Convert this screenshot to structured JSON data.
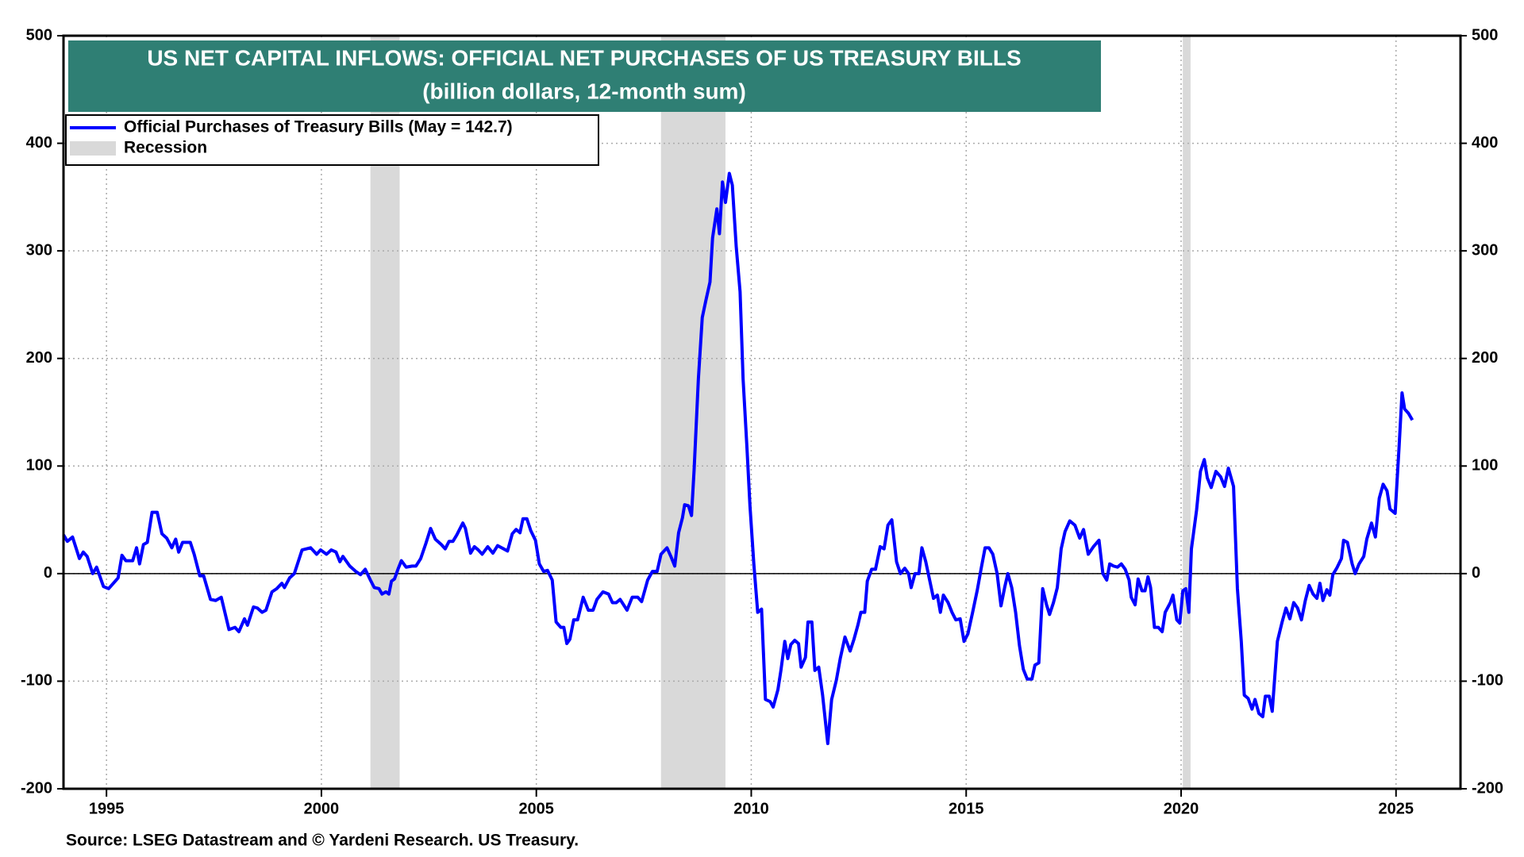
{
  "chart_data": {
    "type": "line",
    "title": "US NET CAPITAL INFLOWS: OFFICIAL NET PURCHASES OF US TREASURY BILLS",
    "subtitle": "(billion dollars, 12-month sum)",
    "source": "Source: LSEG Datastream and © Yardeni Research. US Treasury.",
    "recession_label": "Recession",
    "recession_color": "#d9d9d9",
    "recessions": [
      [
        2001.14,
        2001.82
      ],
      [
        2007.9,
        2009.4
      ],
      [
        2020.04,
        2020.22
      ]
    ],
    "xlim": [
      1994,
      2026.5
    ],
    "xticks": [
      1995,
      2000,
      2005,
      2010,
      2015,
      2020,
      2025
    ],
    "ylim": [
      -200,
      500
    ],
    "yticks": [
      -200,
      -100,
      0,
      100,
      200,
      300,
      400,
      500
    ],
    "y2lim": [
      -200,
      500
    ],
    "y2ticks": [
      -200,
      -100,
      0,
      100,
      200,
      300,
      400,
      500
    ],
    "grid": true,
    "legend": "upper left",
    "x": [
      1994.0,
      1994.09,
      1994.21,
      1994.37,
      1994.46,
      1994.55,
      1994.68,
      1994.77,
      1994.93,
      1995.05,
      1995.16,
      1995.27,
      1995.36,
      1995.45,
      1995.61,
      1995.7,
      1995.77,
      1995.86,
      1995.95,
      1996.06,
      1996.18,
      1996.29,
      1996.4,
      1996.52,
      1996.61,
      1996.68,
      1996.77,
      1996.95,
      1997.04,
      1997.17,
      1997.26,
      1997.42,
      1997.54,
      1997.67,
      1997.85,
      1997.99,
      1998.08,
      1998.21,
      1998.28,
      1998.42,
      1998.51,
      1998.62,
      1998.71,
      1998.85,
      1998.96,
      1999.08,
      1999.14,
      1999.26,
      1999.37,
      1999.55,
      1999.75,
      1999.89,
      1999.98,
      2000.12,
      2000.23,
      2000.34,
      2000.43,
      2000.5,
      2000.66,
      2000.8,
      2000.91,
      2001.02,
      2001.14,
      2001.23,
      2001.34,
      2001.41,
      2001.5,
      2001.57,
      2001.63,
      2001.7,
      2001.79,
      2001.86,
      2001.97,
      2002.11,
      2002.2,
      2002.31,
      2002.43,
      2002.54,
      2002.65,
      2002.79,
      2002.88,
      2002.97,
      2003.06,
      2003.15,
      2003.29,
      2003.35,
      2003.47,
      2003.56,
      2003.65,
      2003.74,
      2003.87,
      2003.99,
      2004.1,
      2004.24,
      2004.33,
      2004.44,
      2004.53,
      2004.62,
      2004.69,
      2004.78,
      2004.87,
      2004.98,
      2005.07,
      2005.17,
      2005.26,
      2005.37,
      2005.46,
      2005.57,
      2005.64,
      2005.71,
      2005.78,
      2005.87,
      2005.96,
      2006.09,
      2006.21,
      2006.32,
      2006.41,
      2006.55,
      2006.68,
      2006.77,
      2006.86,
      2006.95,
      2007.11,
      2007.23,
      2007.36,
      2007.45,
      2007.59,
      2007.7,
      2007.81,
      2007.9,
      2008.04,
      2008.13,
      2008.22,
      2008.31,
      2008.4,
      2008.45,
      2008.54,
      2008.61,
      2008.67,
      2008.77,
      2008.86,
      2008.95,
      2009.04,
      2009.1,
      2009.2,
      2009.26,
      2009.33,
      2009.4,
      2009.49,
      2009.56,
      2009.65,
      2009.74,
      2009.81,
      2009.9,
      2009.97,
      2010.06,
      2010.15,
      2010.24,
      2010.33,
      2010.44,
      2010.51,
      2010.62,
      2010.69,
      2010.78,
      2010.85,
      2010.92,
      2011.01,
      2011.1,
      2011.16,
      2011.26,
      2011.32,
      2011.41,
      2011.48,
      2011.57,
      2011.66,
      2011.78,
      2011.87,
      2011.98,
      2012.07,
      2012.18,
      2012.3,
      2012.39,
      2012.48,
      2012.55,
      2012.64,
      2012.7,
      2012.8,
      2012.89,
      2013.0,
      2013.09,
      2013.18,
      2013.27,
      2013.38,
      2013.47,
      2013.57,
      2013.66,
      2013.72,
      2013.81,
      2013.9,
      2013.97,
      2014.06,
      2014.15,
      2014.24,
      2014.33,
      2014.4,
      2014.47,
      2014.58,
      2014.67,
      2014.76,
      2014.86,
      2014.95,
      2015.04,
      2015.15,
      2015.26,
      2015.35,
      2015.44,
      2015.53,
      2015.62,
      2015.72,
      2015.81,
      2015.9,
      2015.97,
      2016.06,
      2016.15,
      2016.24,
      2016.33,
      2016.42,
      2016.53,
      2016.6,
      2016.69,
      2016.78,
      2016.87,
      2016.94,
      2017.03,
      2017.12,
      2017.21,
      2017.3,
      2017.41,
      2017.53,
      2017.64,
      2017.73,
      2017.84,
      2017.96,
      2018.09,
      2018.18,
      2018.27,
      2018.34,
      2018.43,
      2018.52,
      2018.61,
      2018.7,
      2018.79,
      2018.84,
      2018.93,
      2019.0,
      2019.09,
      2019.16,
      2019.23,
      2019.29,
      2019.38,
      2019.47,
      2019.56,
      2019.63,
      2019.75,
      2019.81,
      2019.9,
      2019.97,
      2020.04,
      2020.11,
      2020.18,
      2020.24,
      2020.36,
      2020.45,
      2020.54,
      2020.61,
      2020.7,
      2020.81,
      2020.92,
      2021.01,
      2021.1,
      2021.22,
      2021.31,
      2021.4,
      2021.47,
      2021.56,
      2021.65,
      2021.72,
      2021.81,
      2021.9,
      2021.96,
      2022.05,
      2022.12,
      2022.24,
      2022.35,
      2022.44,
      2022.53,
      2022.62,
      2022.71,
      2022.8,
      2022.89,
      2022.98,
      2023.07,
      2023.16,
      2023.23,
      2023.3,
      2023.39,
      2023.46,
      2023.53,
      2023.62,
      2023.73,
      2023.78,
      2023.87,
      2023.98,
      2024.05,
      2024.14,
      2024.25,
      2024.32,
      2024.43,
      2024.52,
      2024.61,
      2024.7,
      2024.79,
      2024.86,
      2024.98,
      2025.07,
      2025.14,
      2025.2,
      2025.29,
      2025.38
    ],
    "series": [
      {
        "name": "Official Purchases of Treasury Bills (May = 142.7)",
        "color": "#0000ff",
        "values": [
          36,
          30,
          34,
          14,
          20,
          16,
          0,
          6,
          -12,
          -14,
          -9,
          -4,
          17,
          12,
          12,
          24,
          9,
          27,
          29,
          57,
          57,
          37,
          33,
          24,
          32,
          20,
          29,
          29,
          18,
          -2,
          -2,
          -24,
          -25,
          -22,
          -52,
          -50,
          -54,
          -42,
          -48,
          -31,
          -32,
          -36,
          -34,
          -17,
          -14,
          -9,
          -13,
          -4,
          0,
          22,
          24,
          18,
          22,
          18,
          22,
          20,
          11,
          16,
          7,
          2,
          -1,
          4,
          -6,
          -13,
          -14,
          -19,
          -17,
          -19,
          -7,
          -5,
          5,
          12,
          6,
          7,
          7,
          14,
          28,
          42,
          32,
          27,
          23,
          30,
          30,
          36,
          47,
          42,
          19,
          25,
          22,
          18,
          25,
          19,
          26,
          23,
          21,
          37,
          41,
          38,
          51,
          51,
          40,
          31,
          9,
          2,
          3,
          -6,
          -45,
          -50,
          -50,
          -65,
          -61,
          -43,
          -43,
          -22,
          -34,
          -34,
          -24,
          -17,
          -19,
          -27,
          -27,
          -24,
          -34,
          -22,
          -22,
          -26,
          -6,
          2,
          2,
          18,
          24,
          16,
          7,
          38,
          52,
          64,
          63,
          54,
          96,
          181,
          238,
          255,
          271,
          312,
          339,
          316,
          364,
          345,
          372,
          361,
          304,
          262,
          181,
          117,
          63,
          9,
          -36,
          -33,
          -117,
          -119,
          -124,
          -108,
          -90,
          -63,
          -79,
          -66,
          -62,
          -65,
          -87,
          -78,
          -45,
          -45,
          -90,
          -87,
          -113,
          -158,
          -117,
          -99,
          -79,
          -59,
          -72,
          -61,
          -48,
          -36,
          -36,
          -7,
          4,
          4,
          25,
          23,
          45,
          50,
          11,
          0,
          5,
          0,
          -13,
          0,
          0,
          24,
          11,
          -6,
          -23,
          -20,
          -36,
          -20,
          -27,
          -36,
          -43,
          -42,
          -63,
          -56,
          -36,
          -15,
          5,
          24,
          24,
          18,
          0,
          -30,
          -12,
          0,
          -13,
          -36,
          -67,
          -89,
          -98,
          -98,
          -85,
          -83,
          -14,
          -29,
          -38,
          -27,
          -13,
          23,
          39,
          49,
          45,
          33,
          41,
          18,
          25,
          31,
          0,
          -6,
          9,
          7,
          6,
          9,
          4,
          -6,
          -22,
          -29,
          -5,
          -16,
          -16,
          -3,
          -13,
          -50,
          -50,
          -54,
          -36,
          -27,
          -20,
          -43,
          -46,
          -16,
          -14,
          -36,
          23,
          59,
          95,
          106,
          89,
          80,
          95,
          90,
          81,
          98,
          81,
          -14,
          -63,
          -113,
          -116,
          -126,
          -117,
          -130,
          -133,
          -114,
          -114,
          -128,
          -63,
          -45,
          -32,
          -42,
          -27,
          -32,
          -43,
          -25,
          -11,
          -19,
          -23,
          -9,
          -25,
          -15,
          -20,
          -1,
          5,
          14,
          31,
          29,
          9,
          0,
          9,
          16,
          32,
          47,
          34,
          70,
          83,
          77,
          60,
          56,
          117,
          168,
          153,
          149,
          142.7
        ]
      }
    ]
  }
}
